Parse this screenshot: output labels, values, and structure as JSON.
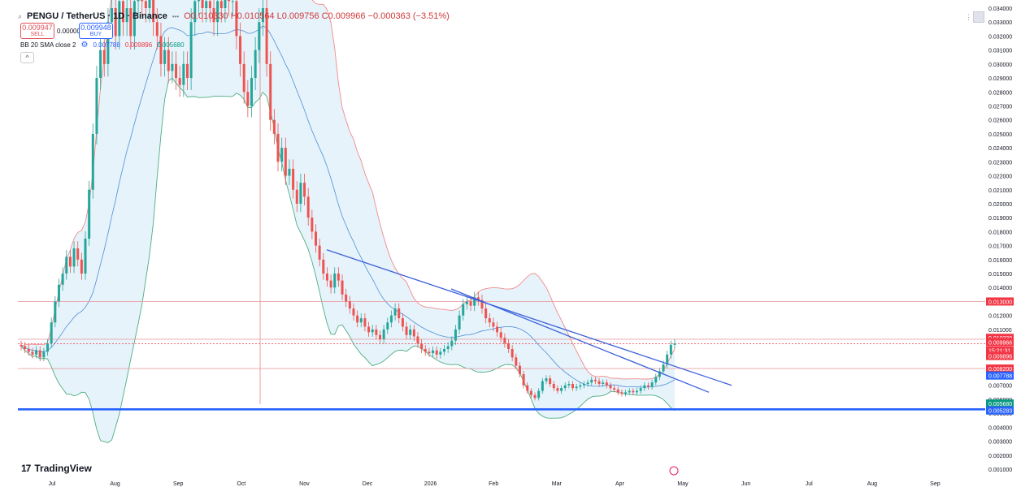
{
  "header": {
    "symbol": "PENGU / TetherUS · 1D · Binance",
    "ohlc": "O0.010330 H0.010564 L0.009756 C0.009966 −0.000363 (−3.51%)",
    "sell_price": "0.009947",
    "sell_label": "SELL",
    "spread": "0.000001",
    "buy_price": "0.009948",
    "buy_label": "BUY",
    "indicator_name": "BB 20 SMA close 2",
    "indicator_values": [
      "0.007788",
      "0.009896",
      "0.005680"
    ],
    "collapse_glyph": "^",
    "dots_glyph": "•••"
  },
  "branding": {
    "logo_text": "TradingView",
    "logo_mark": "17"
  },
  "colors": {
    "up": "#26a69a",
    "down": "#ef5350",
    "band_upper": "#f28a8a",
    "band_lower": "#4caf80",
    "basis": "#4f8fd6",
    "trendline": "#3a5fd9",
    "support": "#2962ff",
    "hline": "#e8a0a8",
    "band_fill": "#dceefa"
  },
  "chart_data": {
    "type": "candlestick",
    "title": "PENGU / TetherUS · 1D · Binance",
    "y_axis": {
      "min": 0.001,
      "max": 0.034,
      "ticks": [
        "0.034000",
        "0.033000",
        "0.032000",
        "0.031000",
        "0.030000",
        "0.029000",
        "0.028000",
        "0.027000",
        "0.026000",
        "0.025000",
        "0.024000",
        "0.023000",
        "0.022000",
        "0.021000",
        "0.020000",
        "0.019000",
        "0.018000",
        "0.017000",
        "0.016000",
        "0.015000",
        "0.014000",
        "0.013000",
        "0.012000",
        "0.011000",
        "0.010000",
        "0.009000",
        "0.008000",
        "0.007000",
        "0.006000",
        "0.005000",
        "0.004000",
        "0.003000",
        "0.002000",
        "0.001000"
      ]
    },
    "x_axis": {
      "month_labels": [
        "Jul",
        "Aug",
        "Sep",
        "Oct",
        "Nov",
        "Dec",
        "2026",
        "Feb",
        "Mar",
        "Apr",
        "May",
        "Jun",
        "Jul",
        "Aug",
        "Sep"
      ]
    },
    "price_labels": [
      {
        "value": "0.013000",
        "color": "#f23645"
      },
      {
        "value": "0.010330",
        "color": "#f23645"
      },
      {
        "value": "0.009966",
        "color": "#f23645"
      },
      {
        "value": "15:21:31",
        "color": "#f23645"
      },
      {
        "value": "0.009896",
        "color": "#f23645"
      },
      {
        "value": "0.008200",
        "color": "#f23645"
      },
      {
        "value": "0.007788",
        "color": "#2962ff"
      },
      {
        "value": "0.005680",
        "color": "#089981"
      },
      {
        "value": "0.005283",
        "color": "#2962ff"
      }
    ],
    "horizontal_lines": [
      {
        "price": 0.013,
        "color": "#e8a0a8",
        "style": "solid"
      },
      {
        "price": 0.0103,
        "color": "#e8a0a8",
        "style": "solid"
      },
      {
        "price": 0.00997,
        "color": "#f23645",
        "style": "dotted"
      },
      {
        "price": 0.0082,
        "color": "#e8a0a8",
        "style": "solid"
      },
      {
        "price": 0.005283,
        "color": "#2962ff",
        "style": "solid-thick"
      }
    ],
    "trendlines": [
      {
        "from": [
          "Nov",
          0.0167
        ],
        "to": [
          "May",
          0.007
        ]
      },
      {
        "from": [
          "Jan",
          0.0139
        ],
        "to": [
          "May",
          0.0065
        ]
      }
    ],
    "candles_path_summary": "Price rallies from ~0.009 (Jul) to ~0.034 (Aug-Sep), falls steadily to ~0.010 (Nov-Dec), rebounds to ~0.013 (Jan), declines to ~0.006-0.007 (Feb-Apr), then breaks out to ~0.0100 (late Apr)",
    "closes": [
      0.0098,
      0.0096,
      0.0094,
      0.0092,
      0.0095,
      0.009,
      0.0094,
      0.01,
      0.0115,
      0.013,
      0.0142,
      0.015,
      0.0162,
      0.0155,
      0.0168,
      0.016,
      0.015,
      0.0175,
      0.021,
      0.025,
      0.029,
      0.031,
      0.03,
      0.033,
      0.034,
      0.032,
      0.0345,
      0.033,
      0.034,
      0.032,
      0.0345,
      0.035,
      0.0345,
      0.034,
      0.035,
      0.033,
      0.032,
      0.03,
      0.031,
      0.0295,
      0.03,
      0.029,
      0.0285,
      0.03,
      0.029,
      0.033,
      0.0345,
      0.035,
      0.034,
      0.0345,
      0.034,
      0.033,
      0.0345,
      0.034,
      0.035,
      0.0345,
      0.0345,
      0.032,
      0.03,
      0.028,
      0.027,
      0.029,
      0.031,
      0.033,
      0.034,
      0.03,
      0.026,
      0.025,
      0.023,
      0.024,
      0.022,
      0.0225,
      0.021,
      0.02,
      0.0215,
      0.0205,
      0.019,
      0.018,
      0.017,
      0.016,
      0.015,
      0.0145,
      0.014,
      0.015,
      0.0145,
      0.0135,
      0.013,
      0.0125,
      0.012,
      0.0115,
      0.0118,
      0.0112,
      0.0108,
      0.011,
      0.0106,
      0.0103,
      0.011,
      0.0115,
      0.012,
      0.0125,
      0.0118,
      0.0112,
      0.0106,
      0.011,
      0.0105,
      0.01,
      0.0096,
      0.0094,
      0.0093,
      0.0095,
      0.0092,
      0.0094,
      0.0096,
      0.0098,
      0.0102,
      0.011,
      0.012,
      0.0128,
      0.013,
      0.0127,
      0.0133,
      0.0131,
      0.0125,
      0.0118,
      0.0115,
      0.0112,
      0.0108,
      0.0104,
      0.01,
      0.0096,
      0.009,
      0.0084,
      0.0078,
      0.007,
      0.0066,
      0.0063,
      0.0061,
      0.0066,
      0.0073,
      0.0075,
      0.0071,
      0.0068,
      0.0066,
      0.0068,
      0.007,
      0.0071,
      0.0068,
      0.0069,
      0.007,
      0.0071,
      0.0072,
      0.0074,
      0.0073,
      0.0071,
      0.0072,
      0.007,
      0.0068,
      0.0067,
      0.0065,
      0.0064,
      0.0065,
      0.0066,
      0.0065,
      0.0066,
      0.0068,
      0.007,
      0.0069,
      0.0072,
      0.0076,
      0.008,
      0.0085,
      0.0092,
      0.0099,
      0.01
    ]
  }
}
